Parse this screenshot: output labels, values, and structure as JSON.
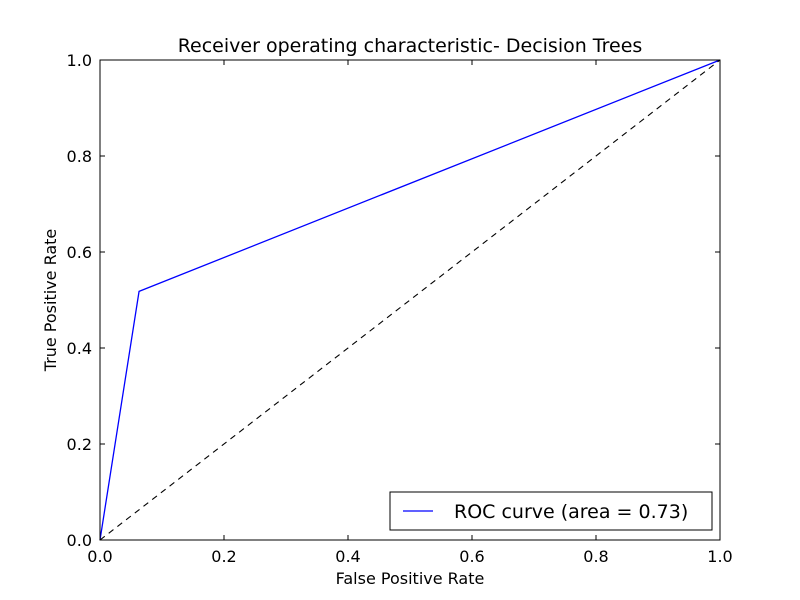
{
  "chart_data": {
    "type": "line",
    "title": "Receiver operating characteristic- Decision Trees",
    "xlabel": "False Positive Rate",
    "ylabel": "True Positive Rate",
    "xlim": [
      0.0,
      1.0
    ],
    "ylim": [
      0.0,
      1.0
    ],
    "xticks": [
      "0.0",
      "0.2",
      "0.4",
      "0.6",
      "0.8",
      "1.0"
    ],
    "yticks": [
      "0.0",
      "0.2",
      "0.4",
      "0.6",
      "0.8",
      "1.0"
    ],
    "grid": false,
    "legend_position": "lower-right",
    "series": [
      {
        "name": "ROC curve (area = 0.73)",
        "color": "#0000ff",
        "style": "solid",
        "x": [
          0.0,
          0.063,
          1.0
        ],
        "y": [
          0.0,
          0.518,
          1.0
        ]
      },
      {
        "color": "#000000",
        "style": "dashed",
        "x": [
          0.0,
          1.0
        ],
        "y": [
          0.0,
          1.0
        ]
      }
    ]
  }
}
